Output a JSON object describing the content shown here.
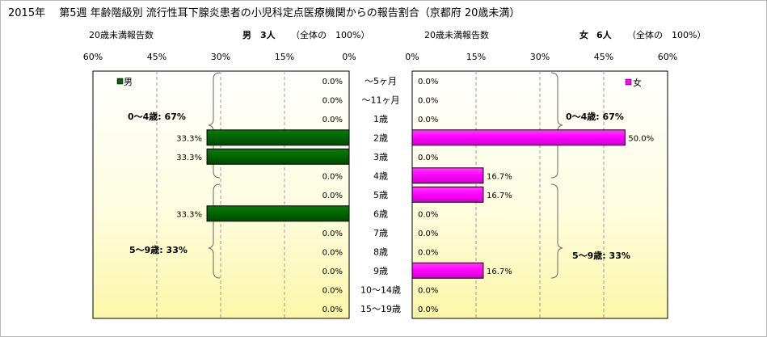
{
  "title": "2015年　 第5週 年齢階級別 流行性耳下腺炎患者の小児科定点医療機関からの報告割合（京都府 20歳未満）",
  "header": {
    "male_left": "20歳未満報告数",
    "male_sex": "男",
    "male_count": "3人",
    "male_total": "（全体の　100%）",
    "female_left": "20歳未満報告数",
    "female_sex": "女",
    "female_count": "6人",
    "female_total": "（全体の　100%）"
  },
  "chart_data": {
    "type": "bar",
    "orientation": "horizontal-butterfly",
    "categories": [
      "～5ヶ月",
      "～11ヶ月",
      "1歳",
      "2歳",
      "3歳",
      "4歳",
      "5歳",
      "6歳",
      "7歳",
      "8歳",
      "9歳",
      "10～14歳",
      "15～19歳"
    ],
    "series": [
      {
        "name": "男",
        "color": "#006400",
        "values": [
          0,
          0,
          0,
          33.3,
          33.3,
          0,
          0,
          33.3,
          0,
          0,
          0,
          0,
          0
        ],
        "labels": [
          "0.0%",
          "0.0%",
          "0.0%",
          "33.3%",
          "33.3%",
          "0.0%",
          "0.0%",
          "33.3%",
          "0.0%",
          "0.0%",
          "0.0%",
          "0.0%",
          "0.0%"
        ]
      },
      {
        "name": "女",
        "color": "#ff00ff",
        "values": [
          0,
          0,
          0,
          50.0,
          0,
          16.7,
          16.7,
          0,
          0,
          0,
          16.7,
          0,
          0
        ],
        "labels": [
          "0.0%",
          "0.0%",
          "0.0%",
          "50.0%",
          "0.0%",
          "16.7%",
          "16.7%",
          "0.0%",
          "0.0%",
          "0.0%",
          "16.7%",
          "0.0%",
          "0.0%"
        ]
      }
    ],
    "xlim": [
      0,
      60
    ],
    "male_ticks": [
      "60%",
      "45%",
      "30%",
      "15%",
      "0%"
    ],
    "female_ticks": [
      "0%",
      "15%",
      "30%",
      "45%",
      "60%"
    ],
    "annotations": {
      "male_0_4": "0～4歳: 67%",
      "male_5_9": "5～9歳: 33%",
      "female_0_4": "0～4歳: 67%",
      "female_5_9": "5～9歳: 33%"
    }
  }
}
